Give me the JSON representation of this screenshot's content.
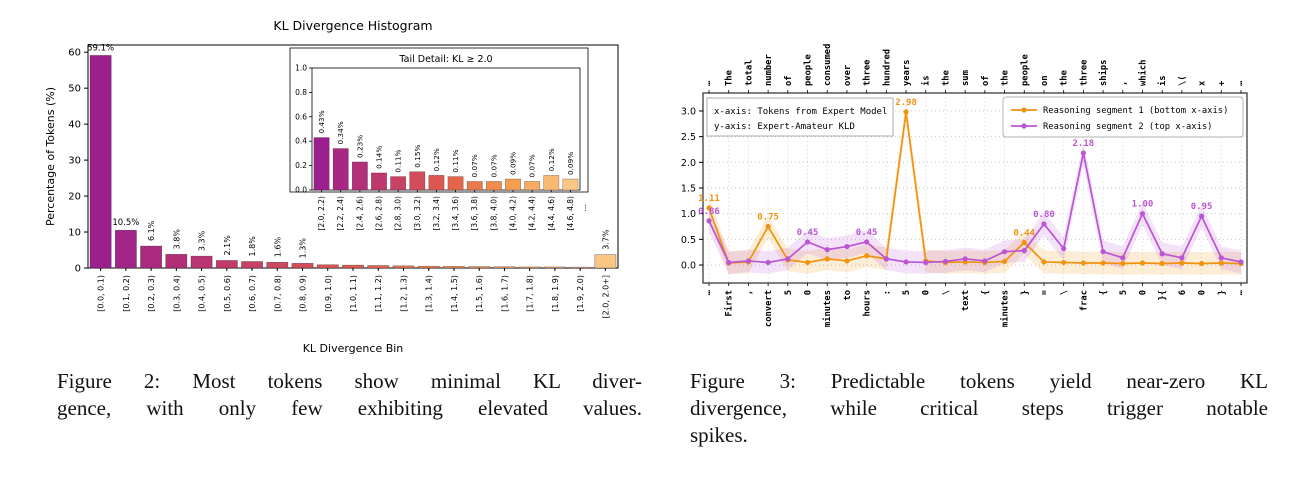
{
  "figure2": {
    "caption_lines": [
      "Figure 2: Most tokens show minimal KL diver-",
      "gence, with only few exhibiting elevated values."
    ]
  },
  "figure3": {
    "caption_lines": [
      "Figure 3: Predictable tokens yield near-zero KL",
      "divergence, while critical steps trigger notable",
      "spikes."
    ]
  },
  "chart_data": [
    {
      "type": "bar",
      "title": "KL Divergence Histogram",
      "xlabel": "KL Divergence Bin",
      "ylabel": "Percentage of Tokens (%)",
      "ylim": [
        0,
        62
      ],
      "yticks": [
        0,
        10,
        20,
        30,
        40,
        50,
        60
      ],
      "categories": [
        "[0.0, 0.1)",
        "[0.1, 0.2)",
        "[0.2, 0.3)",
        "[0.3, 0.4)",
        "[0.4, 0.5)",
        "[0.5, 0.6)",
        "[0.6, 0.7)",
        "[0.7, 0.8)",
        "[0.8, 0.9)",
        "[0.9, 1.0)",
        "[1.0, 1.1)",
        "[1.1, 1.2)",
        "[1.2, 1.3)",
        "[1.3, 1.4)",
        "[1.4, 1.5)",
        "[1.5, 1.6)",
        "[1.6, 1.7)",
        "[1.7, 1.8)",
        "[1.8, 1.9)",
        "[1.9, 2.0)",
        "[2.0, 2.0+]"
      ],
      "values": [
        59.1,
        10.5,
        6.1,
        3.8,
        3.3,
        2.1,
        1.8,
        1.6,
        1.3,
        0.9,
        0.8,
        0.7,
        0.6,
        0.5,
        0.45,
        0.4,
        0.35,
        0.3,
        0.3,
        0.25,
        3.7
      ],
      "bar_labels": [
        "59.1%",
        "10.5%",
        "6.1%",
        "3.8%",
        "3.3%",
        "2.1%",
        "1.8%",
        "1.6%",
        "1.3%",
        "",
        "",
        "",
        "",
        "",
        "",
        "",
        "",
        "",
        "",
        "",
        "3.7%"
      ],
      "colormap": [
        "#9C1F8E",
        "#C13A6A",
        "#E05C4B",
        "#F59B4C",
        "#F9C683"
      ],
      "grid": false,
      "inset": {
        "title": "Tail Detail: KL ≥ 2.0",
        "ylim": [
          0,
          1.0
        ],
        "yticks": [
          0.0,
          0.2,
          0.4,
          0.6,
          0.8,
          1.0
        ],
        "categories": [
          "[2.0, 2.2)",
          "[2.2, 2.4)",
          "[2.4, 2.6)",
          "[2.6, 2.8)",
          "[2.8, 3.0)",
          "[3.0, 3.2)",
          "[3.2, 3.4)",
          "[3.4, 3.6)",
          "[3.6, 3.8)",
          "[3.8, 4.0)",
          "[4.0, 4.2)",
          "[4.2, 4.4)",
          "[4.4, 4.6)",
          "[4.6, 4.8)"
        ],
        "values": [
          0.43,
          0.34,
          0.23,
          0.14,
          0.11,
          0.15,
          0.12,
          0.11,
          0.07,
          0.07,
          0.09,
          0.07,
          0.12,
          0.09
        ],
        "bar_labels": [
          "0.43%",
          "0.34%",
          "0.23%",
          "0.14%",
          "0.11%",
          "0.15%",
          "0.12%",
          "0.11%",
          "0.07%",
          "0.07%",
          "0.09%",
          "0.07%",
          "0.12%",
          "0.09%"
        ],
        "trailing_ellipsis": "⋯"
      }
    },
    {
      "type": "line",
      "annotation_lines": [
        "x-axis: Tokens from Expert Model",
        "y-axis: Expert-Amateur KLD"
      ],
      "ylim": [
        -0.35,
        3.35
      ],
      "yticks": [
        0.0,
        0.5,
        1.0,
        1.5,
        2.0,
        2.5,
        3.0
      ],
      "legend_position": "upper right",
      "grid": true,
      "top_tokens": [
        "⋯",
        "The",
        "total",
        "number",
        "of",
        "people",
        "consumed",
        "over",
        "three",
        "hundred",
        "years",
        "is",
        "the",
        "sum",
        "of",
        "the",
        "people",
        "on",
        "the",
        "three",
        "ships",
        ",",
        "which",
        "is",
        "\\(",
        "x",
        "+",
        "⋯"
      ],
      "bottom_tokens": [
        "⋯",
        "First",
        ",",
        "convert",
        "5",
        "0",
        "minutes",
        "to",
        "hours",
        ":",
        "5",
        "0",
        "\\",
        "text",
        "{",
        "minutes",
        "}",
        "=",
        "\\",
        "frac",
        "{",
        "5",
        "0",
        "}{",
        "6",
        "0",
        "}",
        "⋯"
      ],
      "band_halfwidth": 0.22,
      "series": [
        {
          "name": "Reasoning segment 1 (bottom x-axis)",
          "color": "#F0930E",
          "values": [
            1.11,
            0.04,
            0.06,
            0.75,
            0.1,
            0.05,
            0.12,
            0.08,
            0.18,
            0.12,
            2.98,
            0.08,
            0.05,
            0.06,
            0.05,
            0.07,
            0.44,
            0.06,
            0.05,
            0.04,
            0.04,
            0.03,
            0.04,
            0.03,
            0.04,
            0.03,
            0.04,
            0.03
          ],
          "point_labels": {
            "0": "1.11",
            "3": "0.75",
            "10": "2.98",
            "16": "0.44"
          }
        },
        {
          "name": "Reasoning segment 2 (top x-axis)",
          "color": "#BA55D3",
          "values": [
            0.86,
            0.05,
            0.08,
            0.05,
            0.12,
            0.45,
            0.3,
            0.36,
            0.45,
            0.12,
            0.06,
            0.05,
            0.07,
            0.12,
            0.08,
            0.26,
            0.28,
            0.8,
            0.32,
            2.18,
            0.26,
            0.14,
            1.0,
            0.22,
            0.14,
            0.95,
            0.14,
            0.06
          ],
          "point_labels": {
            "0": "0.86",
            "5": "0.45",
            "8": "0.45",
            "17": "0.80",
            "19": "2.18",
            "22": "1.00",
            "25": "0.95"
          }
        }
      ]
    }
  ]
}
